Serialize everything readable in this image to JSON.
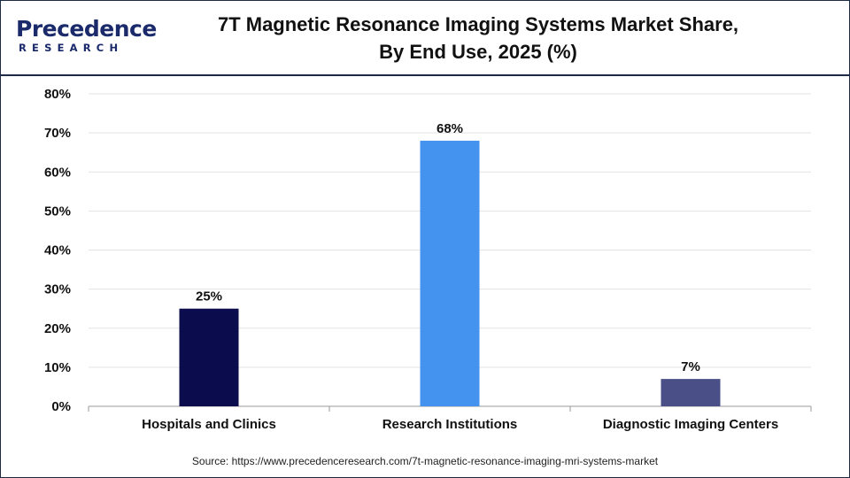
{
  "brand": {
    "name": "Precedence",
    "subtitle": "RESEARCH"
  },
  "title_line1": "7T Magnetic Resonance Imaging Systems Market Share,",
  "title_line2": "By End Use, 2025 (%)",
  "source": "Source: https://www.precedenceresearch.com/7t-magnetic-resonance-imaging-mri-systems-market",
  "chart_data": {
    "type": "bar",
    "title": "7T Magnetic Resonance Imaging Systems Market Share, By End Use, 2025 (%)",
    "categories": [
      "Hospitals and Clinics",
      "Research Institutions",
      "Diagnostic Imaging Centers"
    ],
    "values": [
      25,
      68,
      7
    ],
    "data_labels": [
      "25%",
      "68%",
      "7%"
    ],
    "colors": [
      "#0a0c4d",
      "#4494ef",
      "#4a4f88"
    ],
    "ylim": [
      0,
      80
    ],
    "yticks": [
      0,
      10,
      20,
      30,
      40,
      50,
      60,
      70,
      80
    ],
    "ytick_labels": [
      "0%",
      "10%",
      "20%",
      "30%",
      "40%",
      "50%",
      "60%",
      "70%",
      "80%"
    ],
    "xlabel": "",
    "ylabel": "",
    "grid": true,
    "legend": "none"
  }
}
